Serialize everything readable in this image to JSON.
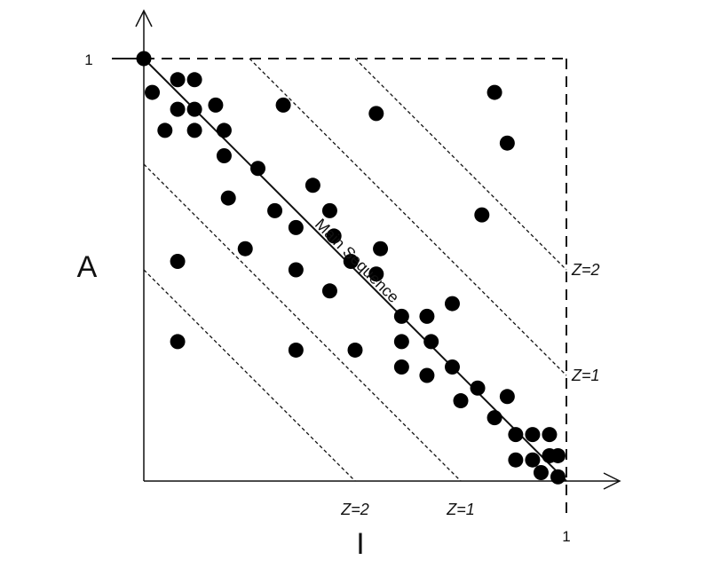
{
  "chart_data": {
    "type": "scatter",
    "xlabel": "I",
    "ylabel": "A",
    "xlim": [
      0,
      1
    ],
    "ylim": [
      0,
      1
    ],
    "x_ticks": [
      "1"
    ],
    "y_ticks": [
      "1"
    ],
    "grid": false,
    "reference_lines": [
      {
        "label": "Main Sequence",
        "style": "solid",
        "from": [
          0,
          1
        ],
        "to": [
          1,
          0
        ]
      },
      {
        "label": "Z=1",
        "style": "dashed",
        "from": [
          0.25,
          1
        ],
        "to": [
          1,
          0.25
        ]
      },
      {
        "label": "Z=2",
        "style": "dashed",
        "from": [
          0.5,
          1
        ],
        "to": [
          1,
          0.5
        ]
      },
      {
        "label": "Z=1",
        "style": "dashed",
        "from": [
          0,
          0.75
        ],
        "to": [
          0.75,
          0
        ]
      },
      {
        "label": "Z=2",
        "style": "dashed",
        "from": [
          0,
          0.5
        ],
        "to": [
          0.5,
          0
        ]
      }
    ],
    "points": [
      [
        0.0,
        1.0
      ],
      [
        0.02,
        0.92
      ],
      [
        0.08,
        0.95
      ],
      [
        0.12,
        0.95
      ],
      [
        0.08,
        0.88
      ],
      [
        0.05,
        0.83
      ],
      [
        0.12,
        0.88
      ],
      [
        0.17,
        0.89
      ],
      [
        0.12,
        0.83
      ],
      [
        0.19,
        0.83
      ],
      [
        0.19,
        0.77
      ],
      [
        0.27,
        0.74
      ],
      [
        0.33,
        0.89
      ],
      [
        0.55,
        0.87
      ],
      [
        0.83,
        0.92
      ],
      [
        0.86,
        0.8
      ],
      [
        0.2,
        0.67
      ],
      [
        0.31,
        0.64
      ],
      [
        0.4,
        0.7
      ],
      [
        0.44,
        0.64
      ],
      [
        0.45,
        0.58
      ],
      [
        0.36,
        0.6
      ],
      [
        0.24,
        0.55
      ],
      [
        0.49,
        0.52
      ],
      [
        0.56,
        0.55
      ],
      [
        0.55,
        0.49
      ],
      [
        0.8,
        0.63
      ],
      [
        0.08,
        0.52
      ],
      [
        0.36,
        0.5
      ],
      [
        0.44,
        0.45
      ],
      [
        0.08,
        0.33
      ],
      [
        0.36,
        0.31
      ],
      [
        0.5,
        0.31
      ],
      [
        0.61,
        0.39
      ],
      [
        0.67,
        0.39
      ],
      [
        0.73,
        0.42
      ],
      [
        0.61,
        0.33
      ],
      [
        0.68,
        0.33
      ],
      [
        0.61,
        0.27
      ],
      [
        0.67,
        0.25
      ],
      [
        0.73,
        0.27
      ],
      [
        0.75,
        0.19
      ],
      [
        0.79,
        0.22
      ],
      [
        0.86,
        0.2
      ],
      [
        0.83,
        0.15
      ],
      [
        0.88,
        0.11
      ],
      [
        0.92,
        0.11
      ],
      [
        0.96,
        0.11
      ],
      [
        0.88,
        0.05
      ],
      [
        0.92,
        0.05
      ],
      [
        0.96,
        0.06
      ],
      [
        0.98,
        0.06
      ],
      [
        0.94,
        0.02
      ],
      [
        0.98,
        0.01
      ]
    ]
  }
}
